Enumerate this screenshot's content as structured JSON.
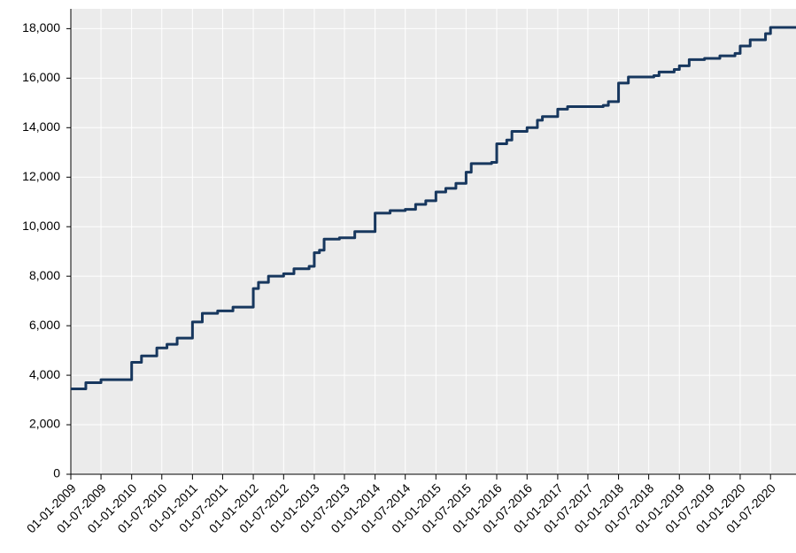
{
  "chart_data": {
    "type": "line",
    "step": "post",
    "x": [
      "01-01-2009",
      "01-04-2009",
      "01-07-2009",
      "01-01-2010",
      "01-03-2010",
      "01-06-2010",
      "01-08-2010",
      "01-10-2010",
      "01-01-2011",
      "01-03-2011",
      "01-06-2011",
      "01-09-2011",
      "01-01-2012",
      "01-02-2012",
      "01-04-2012",
      "01-07-2012",
      "01-09-2012",
      "01-12-2012",
      "01-01-2013",
      "01-02-2013",
      "01-03-2013",
      "01-06-2013",
      "01-09-2013",
      "01-01-2014",
      "01-04-2014",
      "01-07-2014",
      "01-09-2014",
      "01-11-2014",
      "01-01-2015",
      "01-03-2015",
      "01-05-2015",
      "01-07-2015",
      "01-08-2015",
      "01-12-2015",
      "01-01-2016",
      "01-03-2016",
      "01-04-2016",
      "01-07-2016",
      "01-09-2016",
      "01-10-2016",
      "01-01-2017",
      "01-03-2017",
      "01-10-2017",
      "01-11-2017",
      "01-01-2018",
      "01-03-2018",
      "01-08-2018",
      "01-09-2018",
      "01-12-2018",
      "01-01-2019",
      "01-03-2019",
      "01-06-2019",
      "01-09-2019",
      "01-12-2019",
      "01-01-2020",
      "01-03-2020",
      "01-06-2020",
      "01-07-2020",
      "01-12-2020"
    ],
    "series": [
      {
        "color": "#17375e",
        "values": [
          3450,
          3700,
          3820,
          4520,
          4780,
          5100,
          5250,
          5500,
          6150,
          6500,
          6600,
          6750,
          7500,
          7750,
          8000,
          8100,
          8300,
          8400,
          8950,
          9050,
          9500,
          9550,
          9800,
          10550,
          10650,
          10700,
          10900,
          11050,
          11400,
          11550,
          11750,
          12200,
          12550,
          12600,
          13350,
          13500,
          13850,
          14000,
          14300,
          14450,
          14750,
          14850,
          14900,
          15050,
          15800,
          16050,
          16100,
          16250,
          16350,
          16500,
          16750,
          16800,
          16900,
          17000,
          17300,
          17550,
          17800,
          18050,
          18100
        ]
      }
    ],
    "xlim": [
      "01-01-2009",
      "01-12-2020"
    ],
    "xticks": [
      "01-01-2009",
      "01-07-2009",
      "01-01-2010",
      "01-07-2010",
      "01-01-2011",
      "01-07-2011",
      "01-01-2012",
      "01-07-2012",
      "01-01-2013",
      "01-07-2013",
      "01-01-2014",
      "01-07-2014",
      "01-01-2015",
      "01-07-2015",
      "01-01-2016",
      "01-07-2016",
      "01-01-2017",
      "01-07-2017",
      "01-01-2018",
      "01-07-2018",
      "01-01-2019",
      "01-07-2019",
      "01-01-2020",
      "01-07-2020"
    ],
    "ylim": [
      0,
      18800
    ],
    "yticks": [
      0,
      {
        "value": 2000,
        "label": "2,000"
      },
      {
        "value": 4000,
        "label": "4,000"
      },
      {
        "value": 6000,
        "label": "6,000"
      },
      {
        "value": 8000,
        "label": "8,000"
      },
      {
        "value": 10000,
        "label": "10,000"
      },
      {
        "value": 12000,
        "label": "12,000"
      },
      {
        "value": 14000,
        "label": "14,000"
      },
      {
        "value": 16000,
        "label": "16,000"
      },
      {
        "value": 18000,
        "label": "18,000"
      }
    ],
    "grid": true
  }
}
